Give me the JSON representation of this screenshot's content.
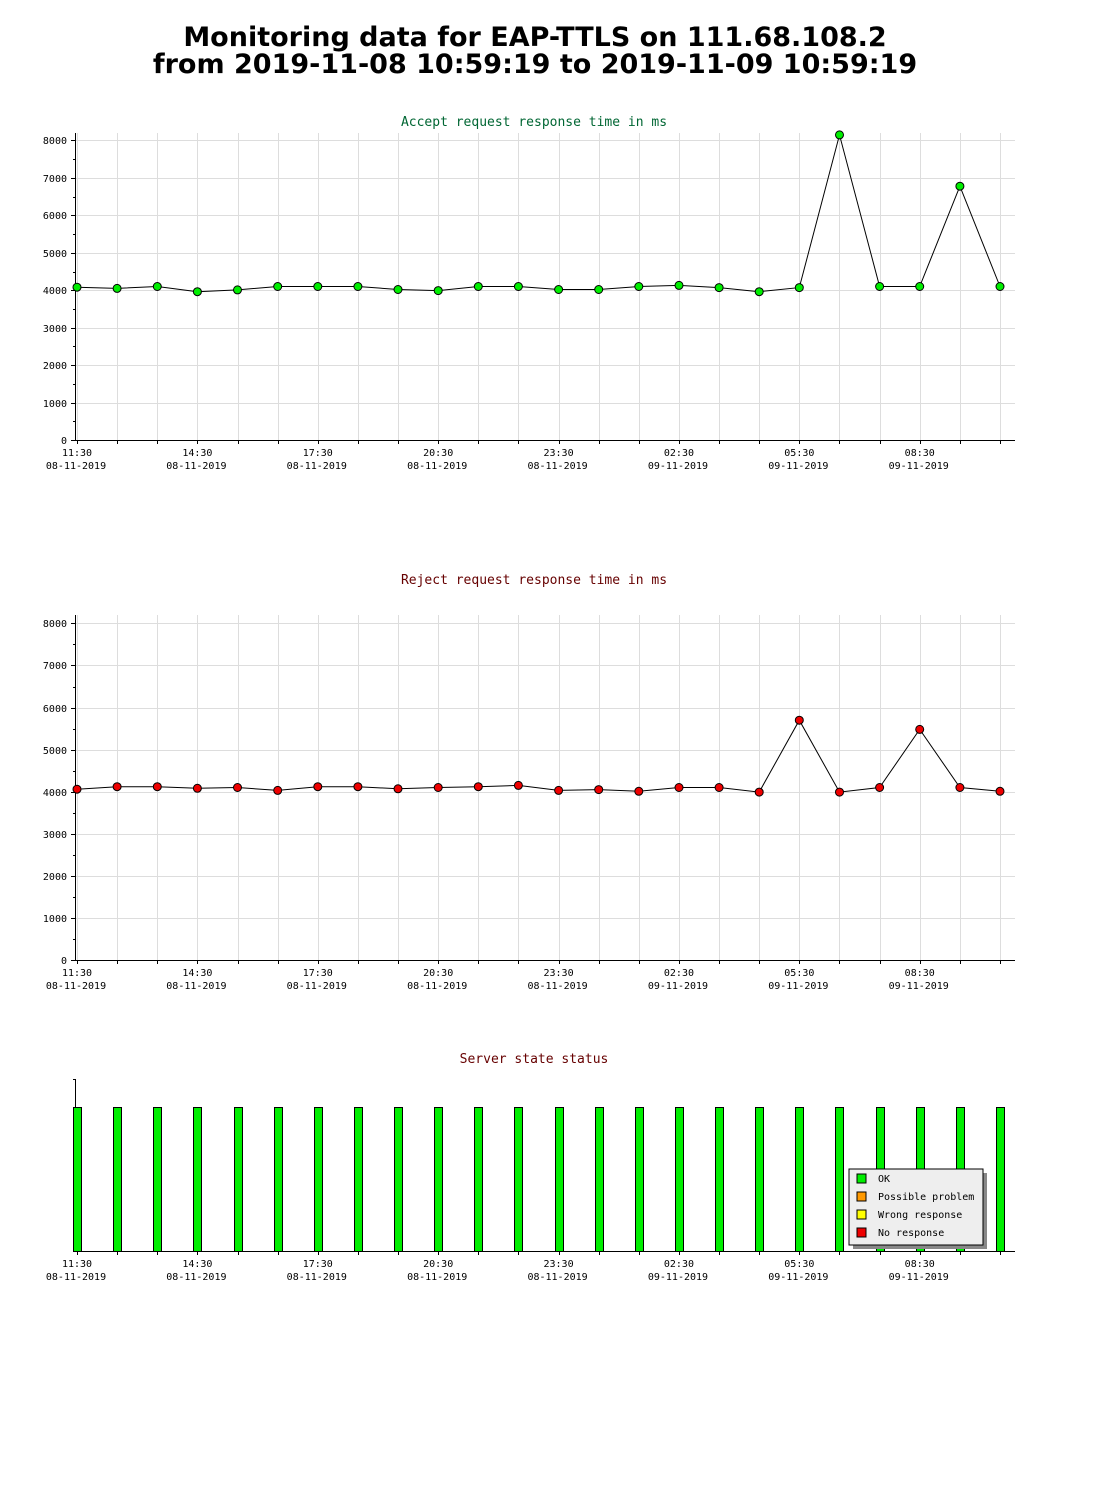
{
  "page": {
    "title_line1": "Monitoring data for EAP-TTLS on 111.68.108.2",
    "title_line2": "from 2019-11-08 10:59:19 to 2019-11-09 10:59:19"
  },
  "colors": {
    "accept_title": "#006633",
    "reject_title": "#660000",
    "status_title": "#660000",
    "accept_marker": "#00ee00",
    "reject_marker": "#ee0000",
    "grid": "#dddddd",
    "ok": "#00ee00",
    "possible_problem": "#ff9900",
    "wrong_response": "#ffff00",
    "no_response": "#ee0000"
  },
  "time_labels": [
    {
      "time": "11:30",
      "date": "08-11-2019"
    },
    {
      "time": "14:30",
      "date": "08-11-2019"
    },
    {
      "time": "17:30",
      "date": "08-11-2019"
    },
    {
      "time": "20:30",
      "date": "08-11-2019"
    },
    {
      "time": "23:30",
      "date": "08-11-2019"
    },
    {
      "time": "02:30",
      "date": "09-11-2019"
    },
    {
      "time": "05:30",
      "date": "09-11-2019"
    },
    {
      "time": "08:30",
      "date": "09-11-2019"
    }
  ],
  "chart_data": [
    {
      "type": "line",
      "title": "Accept request response time in ms",
      "xlabel": "",
      "ylabel": "",
      "ylim": [
        0,
        8200
      ],
      "yticks": [
        0,
        1000,
        2000,
        3000,
        4000,
        5000,
        6000,
        7000,
        8000
      ],
      "x_start": "2019-11-08 11:30",
      "x_interval_hours": 1,
      "grid": true,
      "values": [
        4080,
        4050,
        4100,
        3960,
        4010,
        4100,
        4100,
        4100,
        4020,
        3990,
        4100,
        4100,
        4020,
        4020,
        4100,
        4130,
        4070,
        3960,
        4070,
        8150,
        4100,
        4100,
        6780,
        4100
      ]
    },
    {
      "type": "line",
      "title": "Reject request response time in ms",
      "xlabel": "",
      "ylabel": "",
      "ylim": [
        0,
        8200
      ],
      "yticks": [
        0,
        1000,
        2000,
        3000,
        4000,
        5000,
        6000,
        7000,
        8000
      ],
      "x_start": "2019-11-08 11:30",
      "x_interval_hours": 1,
      "grid": true,
      "values": [
        4060,
        4120,
        4120,
        4080,
        4100,
        4030,
        4120,
        4120,
        4070,
        4100,
        4120,
        4150,
        4030,
        4050,
        4010,
        4100,
        4100,
        3990,
        5700,
        3990,
        4100,
        5480,
        4100,
        4010
      ]
    },
    {
      "type": "bar",
      "title": "Server state status",
      "xlabel": "",
      "ylabel": "",
      "x_start": "2019-11-08 11:30",
      "x_interval_hours": 1,
      "grid": false,
      "legend_position": "bottom-right",
      "legend": [
        "OK",
        "Possible problem",
        "Wrong response",
        "No response"
      ],
      "states": [
        "OK",
        "OK",
        "OK",
        "OK",
        "OK",
        "OK",
        "OK",
        "OK",
        "OK",
        "OK",
        "OK",
        "OK",
        "OK",
        "OK",
        "OK",
        "OK",
        "OK",
        "OK",
        "OK",
        "OK",
        "OK",
        "OK",
        "OK",
        "OK"
      ]
    }
  ]
}
